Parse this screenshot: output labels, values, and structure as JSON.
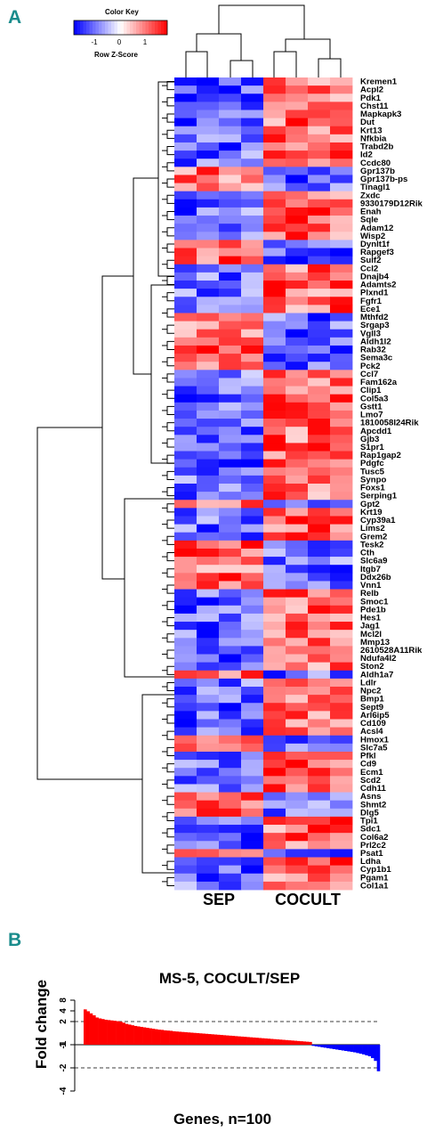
{
  "panels": {
    "a": "A",
    "b": "B"
  },
  "color_key": {
    "title": "Color Key",
    "label": "Row Z-Score",
    "ticks": [
      "-1",
      "0",
      "1"
    ],
    "colors": {
      "low": "#0000ff",
      "mid": "#ffffff",
      "high": "#ff0000"
    }
  },
  "chart_data": [
    {
      "type": "heatmap",
      "groups": [
        "SEP",
        "COCULT"
      ],
      "genes": [
        "Kremen1",
        "Acpl2",
        "Pdk1",
        "Chst11",
        "Mapkapk3",
        "Dut",
        "Krt13",
        "Nfkbia",
        "Trabd2b",
        "Id2",
        "Ccdc80",
        "Gpr137b",
        "Gpr137b-ps",
        "Tinagl1",
        "Zxdc",
        "9330179D12Rik",
        "Enah",
        "Sqle",
        "Adam12",
        "Wisp2",
        "Dynlt1f",
        "Rapgef3",
        "Sulf2",
        "Ccl2",
        "Dnajb4",
        "Adamts2",
        "Plxnd1",
        "Fgfr1",
        "Ece1",
        "Mthfd2",
        "Srgap3",
        "Vgll3",
        "Aldh1l2",
        "Rab32",
        "Sema3c",
        "Pck2",
        "Ccl7",
        "Fam162a",
        "Clip1",
        "Col5a3",
        "Gstt1",
        "Lmo7",
        "1810058I24Rik",
        "Apcdd1",
        "Gjb3",
        "S1pr1",
        "Rap1gap2",
        "Pdgfc",
        "Tusc5",
        "Synpo",
        "Foxs1",
        "Serping1",
        "Gpt2",
        "Krt19",
        "Cyp39a1",
        "Lims2",
        "Grem2",
        "Tesk2",
        "Cth",
        "Slc6a9",
        "Itgb7",
        "Ddx26b",
        "Vnn1",
        "Relb",
        "Smoc1",
        "Pde1b",
        "Hes1",
        "Jag1",
        "Mcl2l",
        "Mmp13",
        "2610528A11Rik",
        "Ndufa4l2",
        "Ston2",
        "Aldh1a7",
        "Ldlr",
        "Npc2",
        "Bmp1",
        "Sept9",
        "Arl6ip5",
        "Cd109",
        "Acsl4",
        "Hmox1",
        "Slc7a5",
        "Pfkl",
        "Cd9",
        "Ecm1",
        "Scd2",
        "Cdh11",
        "Asns",
        "Shmt2",
        "Dlg5",
        "Tpi1",
        "Sdc1",
        "Col6a2",
        "Prl2c2",
        "Psat1",
        "Ldha",
        "Cyp1b1",
        "Pgam1",
        "Col1a1"
      ],
      "sep_high_genes": [
        "Gpr137b",
        "Gpr137b-ps",
        "Tinagl1",
        "Dynlt1f",
        "Rapgef3",
        "Sulf2",
        "Mthfd2",
        "Srgap3",
        "Vgll3",
        "Aldh1l2",
        "Rab32",
        "Sema3c",
        "Pck2",
        "Gpt2",
        "Tesk2",
        "Cth",
        "Slc6a9",
        "Itgb7",
        "Ddx26b",
        "Vnn1",
        "Aldh1a7",
        "Hmox1",
        "Slc7a5",
        "Asns",
        "Shmt2",
        "Dlg5",
        "Psat1"
      ],
      "columns_per_group": 4
    },
    {
      "type": "bar",
      "title": "MS-5, COCULT/SEP",
      "xlabel": "Genes, n=100",
      "ylabel": "Fold change",
      "yticks": [
        "8",
        "4",
        "2",
        "1",
        "-1",
        "-2",
        "-4"
      ],
      "ytick_values": [
        8,
        4,
        2,
        1,
        -1,
        -2,
        -4
      ],
      "reference_lines": [
        2,
        -2
      ],
      "colors": {
        "up": "#ff0000",
        "down": "#0000ff"
      },
      "values": [
        4.4,
        3.9,
        3.4,
        3.0,
        2.6,
        2.45,
        2.35,
        2.25,
        2.2,
        2.15,
        2.1,
        2.05,
        2.0,
        1.95,
        1.9,
        1.87,
        1.84,
        1.81,
        1.79,
        1.77,
        1.75,
        1.73,
        1.71,
        1.69,
        1.67,
        1.65,
        1.64,
        1.62,
        1.61,
        1.6,
        1.58,
        1.57,
        1.56,
        1.55,
        1.54,
        1.53,
        1.52,
        1.51,
        1.5,
        1.49,
        1.48,
        1.47,
        1.46,
        1.45,
        1.44,
        1.43,
        1.42,
        1.41,
        1.4,
        1.39,
        1.38,
        1.37,
        1.36,
        1.35,
        1.34,
        1.33,
        1.32,
        1.31,
        1.3,
        1.29,
        1.28,
        1.27,
        1.26,
        1.25,
        1.24,
        1.23,
        1.22,
        1.21,
        1.2,
        1.19,
        1.18,
        1.17,
        1.16,
        1.15,
        1.14,
        1.13,
        1.12,
        -1.05,
        -1.07,
        -1.09,
        -1.11,
        -1.13,
        -1.15,
        -1.17,
        -1.19,
        -1.21,
        -1.23,
        -1.25,
        -1.27,
        -1.29,
        -1.31,
        -1.33,
        -1.36,
        -1.39,
        -1.42,
        -1.46,
        -1.5,
        -1.58,
        -1.7,
        -2.45
      ]
    }
  ]
}
